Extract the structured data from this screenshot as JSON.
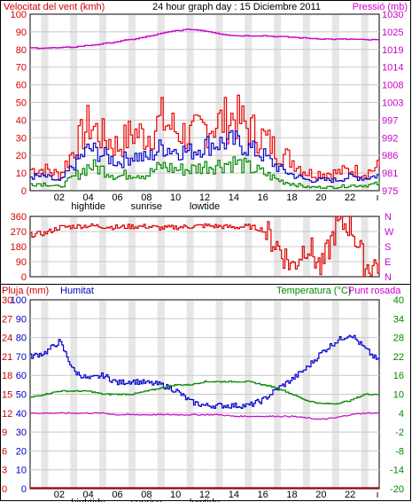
{
  "title": "24 hour graph day : 15 Diciembre 2011",
  "colors": {
    "wind_axis": "#d40000",
    "pressure_axis": "#cc00cc",
    "rain": "#d40000",
    "humidity": "#0000bb",
    "temp_axis": "#008800",
    "dew": "#cc00cc",
    "gust": "#ee0000",
    "avg": "#0000cc",
    "grid": "#c8c8c8",
    "band": "#e6e6e6"
  },
  "chart_data": [
    {
      "type": "line",
      "title": "24 hour graph day : 15 Diciembre 2011",
      "ylabel": "Velocitat del vent (kmh)",
      "y2label": "Pressió (mb)",
      "ylim": [
        0,
        100
      ],
      "y2lim": [
        975,
        1030
      ],
      "yticks": [
        "100",
        "90",
        "80",
        "70",
        "60",
        "50",
        "40",
        "30",
        "20",
        "10",
        "0"
      ],
      "y2ticks": [
        "1030",
        "1025",
        "1019",
        "1014",
        "1008",
        "1003",
        "997",
        "992",
        "986",
        "981",
        "975"
      ],
      "xticks": [
        "02",
        "04",
        "06",
        "08",
        "10",
        "12",
        "14",
        "16",
        "18",
        "20",
        "22"
      ],
      "annotations": [
        "hightide",
        "sunrise",
        "lowtide"
      ],
      "x": [
        0,
        1,
        2,
        3,
        4,
        5,
        6,
        7,
        8,
        9,
        10,
        11,
        12,
        13,
        14,
        15,
        16,
        17,
        18,
        19,
        20,
        21,
        22,
        23,
        24
      ],
      "series": [
        {
          "key": "gust",
          "values": [
            12,
            12,
            9,
            24,
            38,
            30,
            25,
            33,
            31,
            40,
            34,
            31,
            36,
            39,
            42,
            35,
            30,
            22,
            17,
            10,
            10,
            10,
            12,
            10,
            14
          ]
        },
        {
          "key": "avg",
          "values": [
            8,
            8,
            5,
            15,
            24,
            20,
            16,
            20,
            18,
            25,
            23,
            22,
            26,
            27,
            28,
            24,
            20,
            13,
            9,
            6,
            6,
            6,
            8,
            7,
            9
          ]
        },
        {
          "key": "low",
          "values": [
            4,
            4,
            2,
            8,
            14,
            12,
            8,
            10,
            9,
            14,
            12,
            12,
            14,
            15,
            16,
            13,
            10,
            6,
            4,
            2,
            2,
            2,
            3,
            3,
            4
          ]
        },
        {
          "key": "pressure",
          "values": [
            1019.5,
            1019.5,
            1019.5,
            1019.8,
            1020.3,
            1020.8,
            1021.5,
            1022.2,
            1023.0,
            1024.0,
            1024.9,
            1025.3,
            1024.8,
            1023.9,
            1023.3,
            1023.3,
            1023.3,
            1023.0,
            1022.8,
            1022.5,
            1022.3,
            1022.2,
            1022.2,
            1022.0,
            1022.0
          ]
        }
      ]
    },
    {
      "type": "line",
      "ylim": [
        0,
        360
      ],
      "yticks": [
        "360",
        "270",
        "180",
        "90",
        "0"
      ],
      "y2ticks": [
        "N",
        "W",
        "S",
        "E",
        "N"
      ],
      "x": [
        0,
        1,
        2,
        3,
        4,
        5,
        6,
        7,
        8,
        9,
        10,
        11,
        12,
        13,
        14,
        15,
        16,
        17,
        18,
        19,
        20,
        21,
        22,
        23,
        24
      ],
      "series": [
        {
          "key": "direction",
          "values": [
            250,
            260,
            295,
            300,
            305,
            300,
            295,
            300,
            300,
            290,
            295,
            300,
            305,
            300,
            295,
            300,
            280,
            180,
            60,
            200,
            40,
            300,
            320,
            60,
            80
          ]
        }
      ]
    },
    {
      "type": "line",
      "ylabel": "Pluja (mm)",
      "ylabel2": "Humitat",
      "y2label": "Temperatura (°C)",
      "y2label2": "Punt rosada",
      "ylim": [
        0,
        100
      ],
      "y2lim": [
        -20,
        40
      ],
      "yticks_rain": [
        "30",
        "27",
        "24",
        "21",
        "18",
        "15",
        "12",
        "9",
        "6",
        "3",
        "0"
      ],
      "yticks_hum": [
        "100",
        "90",
        "80",
        "70",
        "60",
        "50",
        "40",
        "30",
        "20",
        "10",
        "0"
      ],
      "y2ticks": [
        "40",
        "34",
        "28",
        "22",
        "16",
        "10",
        "4",
        "-2",
        "-8",
        "-14",
        "-20"
      ],
      "xticks": [
        "02",
        "04",
        "06",
        "08",
        "10",
        "12",
        "14",
        "16",
        "18",
        "20",
        "22"
      ],
      "annotations": [
        "hightide",
        "sunrise",
        "lowtide"
      ],
      "x": [
        0,
        1,
        2,
        3,
        4,
        5,
        6,
        7,
        8,
        9,
        10,
        11,
        12,
        13,
        14,
        15,
        16,
        17,
        18,
        19,
        20,
        21,
        22,
        23,
        24
      ],
      "series": [
        {
          "key": "humidity",
          "values": [
            70,
            72,
            78,
            62,
            58,
            60,
            56,
            57,
            56,
            55,
            52,
            46,
            44,
            44,
            44,
            44,
            47,
            53,
            58,
            64,
            72,
            78,
            82,
            74,
            67
          ]
        },
        {
          "key": "temperature",
          "values": [
            9,
            10,
            11,
            11,
            11,
            10,
            10,
            10,
            11,
            12,
            13,
            13,
            14,
            14,
            14,
            14,
            13,
            12,
            10,
            8,
            7,
            7,
            8,
            10,
            10
          ]
        },
        {
          "key": "dewpoint",
          "values": [
            4,
            4,
            4,
            4,
            4,
            4,
            3.5,
            3.5,
            3.5,
            3.5,
            3.5,
            3.5,
            3.5,
            3.5,
            3,
            3,
            3,
            3,
            3,
            2.5,
            2,
            2.5,
            3.5,
            4,
            4
          ]
        },
        {
          "key": "rain",
          "values": [
            0,
            0,
            0,
            0,
            0,
            0,
            0,
            0,
            0,
            0,
            0,
            0,
            0,
            0,
            0,
            0,
            0,
            0,
            0,
            0,
            0,
            0,
            0,
            0,
            0
          ]
        }
      ]
    }
  ]
}
